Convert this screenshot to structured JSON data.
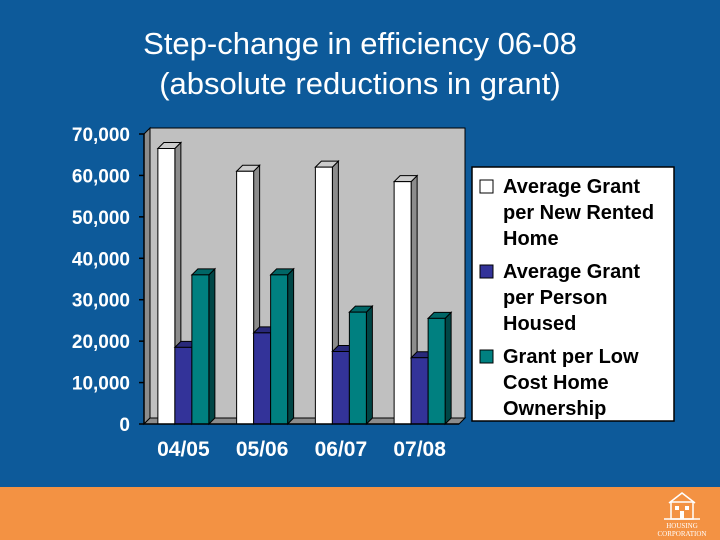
{
  "slide": {
    "title_line1": "Step-change in efficiency 06-08",
    "title_line2": "(absolute reductions in grant)",
    "logo_text_line1": "HOUSING",
    "logo_text_line2": "CORPORATION"
  },
  "colors": {
    "background": "#0d5a9a",
    "footer": "#f39243",
    "plot_area": "#c0c0c0",
    "legend_box": "#ffffff"
  },
  "chart_data": {
    "type": "bar",
    "categories": [
      "04/05",
      "05/06",
      "06/07",
      "07/08"
    ],
    "series": [
      {
        "name": "Average Grant per New Rented Home",
        "color": "#ffffff",
        "values": [
          66500,
          61000,
          62000,
          58500
        ]
      },
      {
        "name": "Average Grant per Person Housed",
        "color": "#333399",
        "values": [
          18500,
          22000,
          17500,
          16000
        ]
      },
      {
        "name": "Grant per Low Cost Home Ownership",
        "color": "#008080",
        "values": [
          36000,
          36000,
          27000,
          25500
        ]
      }
    ],
    "yticks": [
      "0",
      "10,000",
      "20,000",
      "30,000",
      "40,000",
      "50,000",
      "60,000",
      "70,000"
    ],
    "ylim": [
      0,
      70000
    ],
    "grid": false,
    "legend_position": "right"
  }
}
